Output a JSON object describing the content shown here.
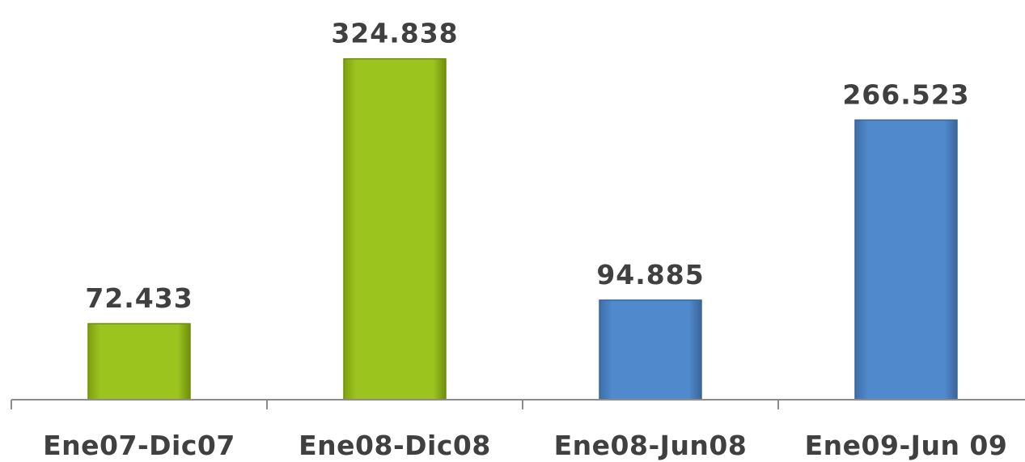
{
  "chart_data": {
    "type": "bar",
    "categories": [
      "Ene07-Dic07",
      "Ene08-Dic08",
      "Ene08-Jun08",
      "Ene09-Jun 09"
    ],
    "values": [
      72.433,
      324.838,
      94.885,
      266.523
    ],
    "value_labels": [
      "72.433",
      "324.838",
      "94.885",
      "266.523"
    ],
    "bar_colors": [
      "#9dc222",
      "#9dc222",
      "#4f86c6",
      "#4f86c6"
    ],
    "title": "",
    "xlabel": "",
    "ylabel": "",
    "ylim": [
      0,
      330
    ],
    "grid": false,
    "legend": "none"
  }
}
